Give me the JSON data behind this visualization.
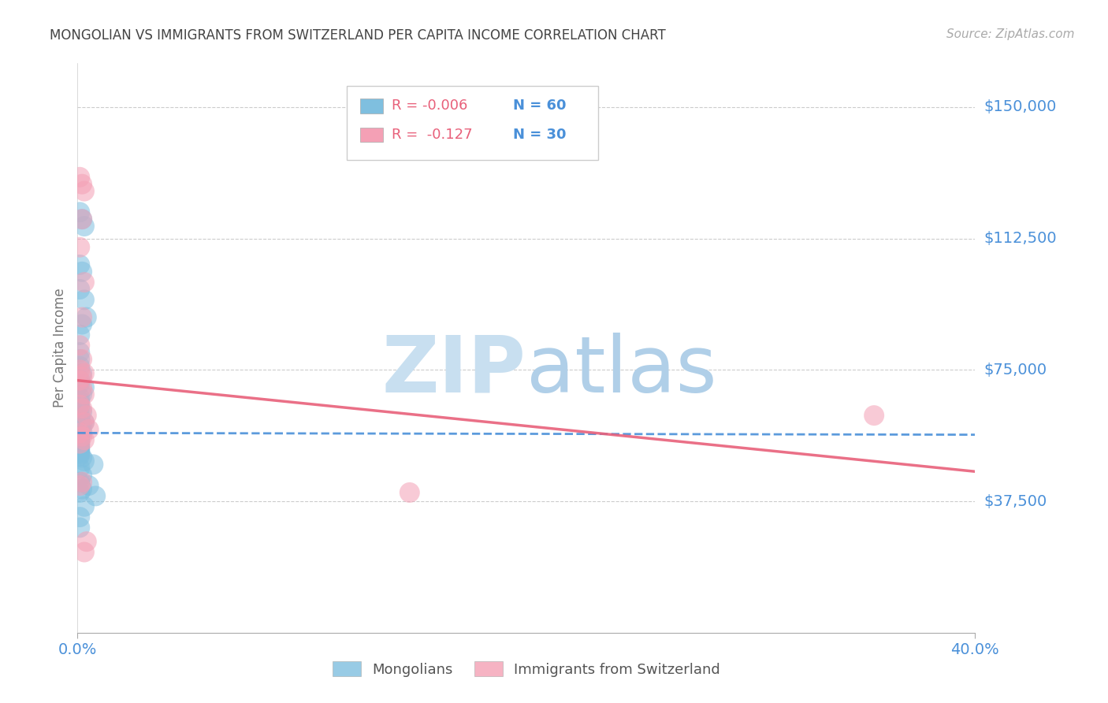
{
  "title": "MONGOLIAN VS IMMIGRANTS FROM SWITZERLAND PER CAPITA INCOME CORRELATION CHART",
  "source": "Source: ZipAtlas.com",
  "ylabel": "Per Capita Income",
  "ytick_labels": [
    "$37,500",
    "$75,000",
    "$112,500",
    "$150,000"
  ],
  "ytick_values": [
    37500,
    75000,
    112500,
    150000
  ],
  "ymin": 0,
  "ymax": 162500,
  "xmin": 0.0,
  "xmax": 0.4,
  "legend_r1": "R = -0.006",
  "legend_n1": "N = 60",
  "legend_r2": "R =  -0.127",
  "legend_n2": "N = 30",
  "blue_color": "#7fbfdf",
  "pink_color": "#f4a0b5",
  "blue_line_color": "#4a90d9",
  "pink_line_color": "#e8607a",
  "axis_label_color": "#4a90d9",
  "watermark_zip_color": "#c8dff0",
  "watermark_atlas_color": "#b0cfe8",
  "background_color": "#ffffff",
  "grid_color": "#cccccc",
  "mongolian_x": [
    0.001,
    0.002,
    0.003,
    0.001,
    0.002,
    0.001,
    0.003,
    0.004,
    0.002,
    0.001,
    0.001,
    0.001,
    0.001,
    0.002,
    0.001,
    0.001,
    0.003,
    0.002,
    0.001,
    0.001,
    0.001,
    0.001,
    0.002,
    0.001,
    0.001,
    0.001,
    0.001,
    0.003,
    0.002,
    0.001,
    0.001,
    0.001,
    0.002,
    0.001,
    0.001,
    0.001,
    0.001,
    0.001,
    0.001,
    0.001,
    0.001,
    0.001,
    0.001,
    0.001,
    0.001,
    0.001,
    0.001,
    0.002,
    0.003,
    0.007,
    0.001,
    0.002,
    0.001,
    0.005,
    0.002,
    0.001,
    0.008,
    0.003,
    0.001,
    0.001
  ],
  "mongolian_y": [
    120000,
    118000,
    116000,
    105000,
    103000,
    98000,
    95000,
    90000,
    88000,
    85000,
    80000,
    78000,
    76000,
    74000,
    72000,
    71000,
    70000,
    68000,
    67000,
    66000,
    65000,
    64000,
    63000,
    62000,
    61500,
    61000,
    60500,
    60000,
    59500,
    59000,
    58500,
    58000,
    57500,
    57000,
    56500,
    56000,
    55500,
    55000,
    54500,
    54000,
    53500,
    53000,
    52500,
    52000,
    51500,
    51000,
    50500,
    50000,
    49000,
    48000,
    47000,
    45000,
    43000,
    42000,
    41000,
    40000,
    39000,
    36000,
    33000,
    30000
  ],
  "swiss_x": [
    0.001,
    0.002,
    0.003,
    0.002,
    0.001,
    0.003,
    0.002,
    0.001,
    0.002,
    0.001,
    0.003,
    0.002,
    0.001,
    0.002,
    0.003,
    0.001,
    0.002,
    0.004,
    0.003,
    0.005,
    0.001,
    0.002,
    0.003,
    0.001,
    0.002,
    0.001,
    0.355,
    0.148,
    0.004,
    0.003
  ],
  "swiss_y": [
    130000,
    128000,
    126000,
    118000,
    110000,
    100000,
    90000,
    82000,
    78000,
    75000,
    74000,
    73000,
    72000,
    70000,
    68000,
    65000,
    64000,
    62000,
    60000,
    58000,
    57000,
    56000,
    55000,
    54000,
    43000,
    42000,
    62000,
    40000,
    26000,
    23000
  ],
  "mongo_line_x": [
    0.0,
    0.4
  ],
  "mongo_line_y": [
    57000,
    56500
  ],
  "swiss_line_x": [
    0.0,
    0.4
  ],
  "swiss_line_y": [
    72000,
    46000
  ]
}
